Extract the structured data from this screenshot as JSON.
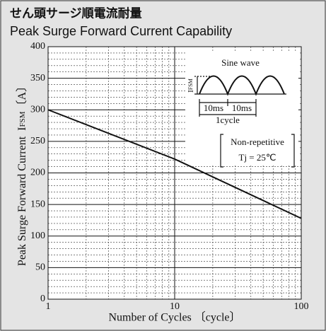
{
  "chart_data": {
    "type": "line",
    "title_ja": "せん頭サージ順電流耐量",
    "title": "Peak Surge Forward Current Capability",
    "xlabel": "Number of Cycles 〔cycle〕",
    "ylabel": "Peak Surge Forward Current",
    "ylabel_symbol": "I",
    "ylabel_sub": "FSM",
    "ylabel_unit": "〔A〕",
    "x": [
      1,
      10,
      100
    ],
    "series": [
      {
        "name": "IFSM",
        "color": "#111111",
        "values": [
          300,
          222,
          128
        ]
      }
    ],
    "xlim": [
      1,
      100
    ],
    "xticks": [
      1,
      10,
      100
    ],
    "xscale": "log",
    "ylim": [
      0,
      400
    ],
    "yticks": [
      0,
      50,
      100,
      150,
      200,
      250,
      300,
      350,
      400
    ],
    "grid": true,
    "inset": {
      "wave": "Sine wave",
      "symbol": "I",
      "sub": "FSM",
      "t1": "10ms",
      "t2": "10ms",
      "cycle": "1cycle"
    },
    "annotations": [
      "Non-repetitive",
      "Tj = 25℃"
    ]
  }
}
